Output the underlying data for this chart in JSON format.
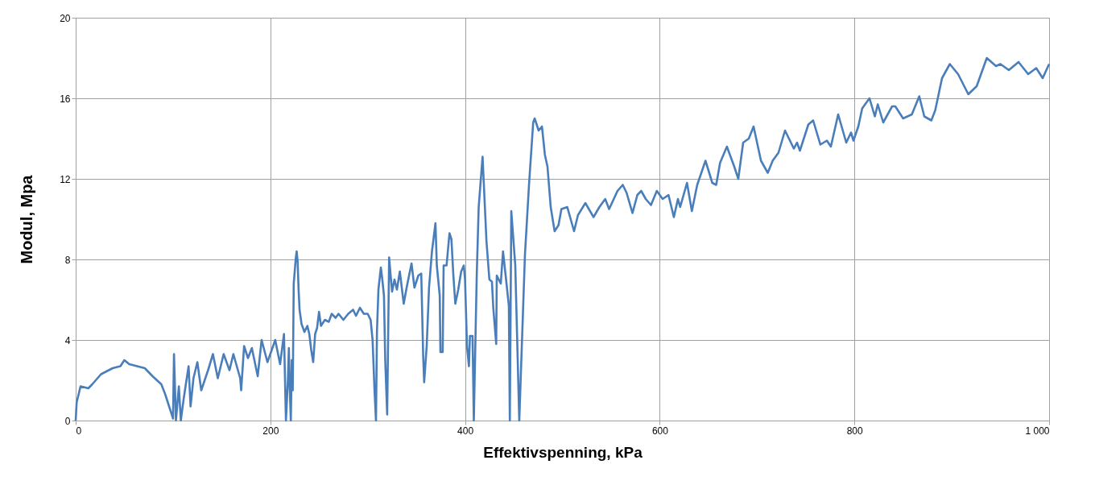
{
  "chart_data": {
    "type": "line",
    "xlabel": "Effektivspenning, kPa",
    "ylabel": "Modul, Mpa",
    "x": [
      0,
      1,
      3,
      5,
      13,
      17,
      26,
      38,
      46,
      50,
      55,
      63,
      71,
      79,
      88,
      92,
      96,
      100,
      101,
      103,
      106,
      108,
      111,
      116,
      118,
      121,
      125,
      129,
      136,
      141,
      146,
      152,
      158,
      162,
      169,
      170,
      173,
      177,
      181,
      187,
      191,
      197,
      205,
      210,
      214,
      216,
      218,
      219,
      220,
      221,
      222,
      223,
      224,
      225,
      226,
      227,
      228,
      229,
      230,
      232,
      235,
      238,
      240,
      242,
      244,
      246,
      248,
      250,
      252,
      256,
      260,
      263,
      267,
      270,
      275,
      280,
      285,
      288,
      292,
      296,
      300,
      303,
      305,
      307,
      308.5,
      309.5,
      311,
      313.5,
      315,
      316.7,
      318,
      320,
      322,
      325,
      327.5,
      330,
      333,
      337,
      340,
      345,
      348,
      352,
      355,
      357,
      358,
      360.6,
      363,
      366,
      369.6,
      371,
      374,
      374.7,
      377,
      378,
      381,
      384,
      386,
      388,
      390,
      393,
      396,
      398.7,
      400,
      402,
      404,
      405,
      407.7,
      409,
      412,
      414,
      418,
      422,
      425,
      427.6,
      429,
      432,
      432.6,
      436.7,
      439,
      441.7,
      445,
      446,
      447.5,
      451.6,
      455.7,
      461.5,
      465.7,
      470,
      471.5,
      475.6,
      479,
      482,
      484.7,
      488,
      492,
      496,
      499,
      505,
      512,
      516,
      523.6,
      532,
      538,
      544,
      548,
      556.6,
      562,
      566,
      572,
      577,
      581,
      585.6,
      591,
      597,
      603,
      609,
      614.5,
      618.7,
      621,
      628,
      633,
      638.5,
      647,
      654,
      658,
      662,
      669,
      676.6,
      680.7,
      685.7,
      691.5,
      696.4,
      704,
      711,
      716,
      722,
      728.7,
      737.8,
      741,
      744,
      752.7,
      757.6,
      765,
      771.7,
      775.8,
      783.3,
      791.6,
      796.5,
      799,
      804,
      808,
      815.5,
      821,
      824,
      829.6,
      838.7,
      842,
      850,
      859,
      866.6,
      871.8,
      879,
      883,
      890,
      898,
      906.5,
      917,
      925.6,
      936,
      945.4,
      950,
      958.6,
      968.6,
      978.5,
      986.8,
      993.4,
      1000
    ],
    "series": [
      {
        "color": "#4a7ebb",
        "values": [
          0,
          0.9,
          1.3,
          1.7,
          1.6,
          1.8,
          2.3,
          2.6,
          2.7,
          3.0,
          2.8,
          2.7,
          2.6,
          2.2,
          1.8,
          1.3,
          0.7,
          0.1,
          3.3,
          0,
          1.7,
          0,
          1.1,
          2.7,
          0.7,
          2.1,
          2.9,
          1.5,
          2.5,
          3.3,
          2.1,
          3.3,
          2.5,
          3.3,
          2.1,
          1.5,
          3.7,
          3.1,
          3.6,
          2.2,
          4.0,
          2.9,
          4.0,
          2.8,
          4.3,
          0,
          2.0,
          3.6,
          1.5,
          0,
          3.0,
          1.5,
          6.8,
          7.4,
          8.0,
          8.4,
          7.9,
          6.5,
          5.5,
          4.8,
          4.4,
          4.7,
          4.3,
          3.5,
          2.9,
          4.3,
          4.6,
          5.4,
          4.7,
          5.0,
          4.9,
          5.3,
          5.1,
          5.3,
          5.0,
          5.3,
          5.5,
          5.2,
          5.6,
          5.3,
          5.3,
          5.0,
          4.0,
          1.5,
          0,
          4.4,
          6.5,
          7.6,
          7.0,
          6.2,
          3.0,
          0.3,
          8.1,
          6.4,
          7.0,
          6.5,
          7.4,
          5.8,
          6.6,
          7.8,
          6.6,
          7.2,
          7.3,
          3.2,
          1.9,
          3.7,
          6.6,
          8.4,
          9.8,
          7.7,
          6.2,
          3.4,
          3.4,
          7.7,
          7.7,
          9.3,
          9.0,
          7.2,
          5.8,
          6.5,
          7.4,
          7.7,
          7.0,
          3.7,
          2.7,
          4.2,
          4.2,
          0,
          7.2,
          10.6,
          13.1,
          8.9,
          7.0,
          6.9,
          5.6,
          3.8,
          7.2,
          6.8,
          8.4,
          7.2,
          5.7,
          0,
          10.4,
          7.7,
          0,
          8.2,
          11.7,
          14.8,
          15.0,
          14.4,
          14.6,
          13.2,
          12.6,
          10.6,
          9.4,
          9.7,
          10.5,
          10.6,
          9.4,
          10.2,
          10.8,
          10.1,
          10.6,
          11.0,
          10.5,
          11.4,
          11.7,
          11.3,
          10.3,
          11.2,
          11.4,
          11.0,
          10.7,
          11.4,
          11.0,
          11.2,
          10.1,
          11.0,
          10.6,
          11.8,
          10.4,
          11.7,
          12.9,
          11.8,
          11.7,
          12.8,
          13.6,
          12.6,
          12.0,
          13.8,
          14.0,
          14.6,
          12.9,
          12.3,
          12.9,
          13.3,
          14.4,
          13.5,
          13.8,
          13.4,
          14.7,
          14.9,
          13.7,
          13.9,
          13.6,
          15.2,
          13.8,
          14.3,
          13.9,
          14.6,
          15.5,
          16.0,
          15.1,
          15.7,
          14.8,
          15.6,
          15.6,
          15.0,
          15.2,
          16.1,
          15.1,
          14.9,
          15.4,
          17.0,
          17.7,
          17.2,
          16.2,
          16.6,
          18.0,
          17.6,
          17.7,
          17.4,
          17.8,
          17.2,
          17.5,
          17.0,
          17.7
        ]
      }
    ],
    "xlim": [
      0,
      1000
    ],
    "xticks": [
      0,
      200,
      400,
      600,
      800,
      {
        "value": 1000,
        "label": "1 000"
      }
    ],
    "ylim": [
      0,
      20
    ],
    "yticks": [
      0,
      4,
      8,
      12,
      16,
      20
    ],
    "grid": true,
    "line_style": "solid",
    "legend": false
  }
}
